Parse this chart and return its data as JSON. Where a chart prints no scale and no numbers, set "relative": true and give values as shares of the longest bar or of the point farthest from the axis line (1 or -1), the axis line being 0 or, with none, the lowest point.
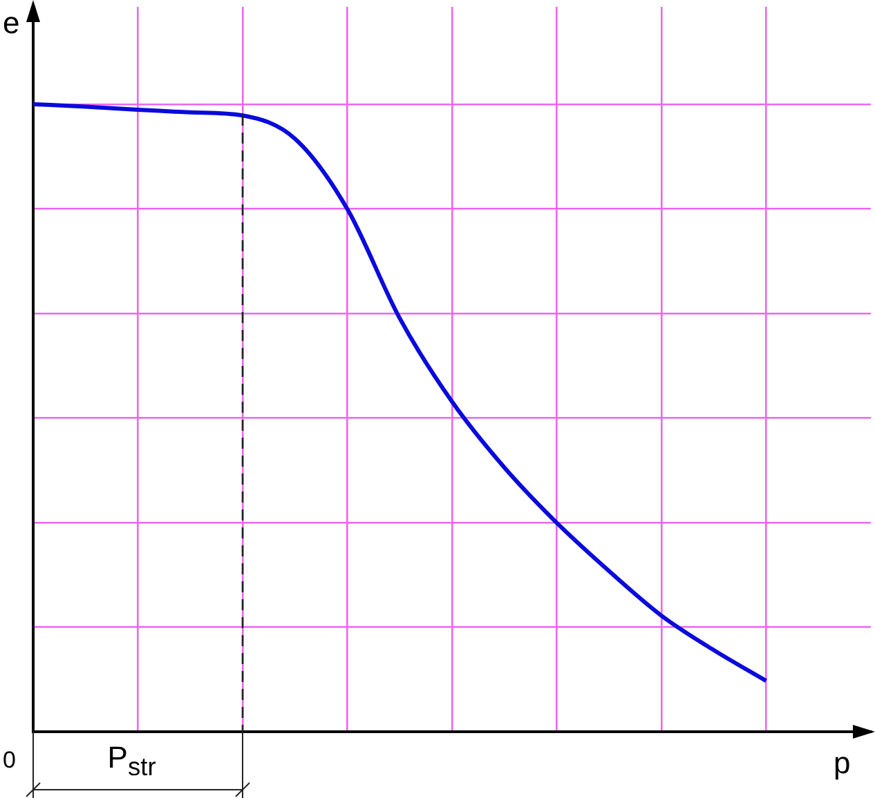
{
  "chart_data": {
    "type": "line",
    "relative": true,
    "xlabel": "p",
    "ylabel": "e",
    "annotations": [
      "0",
      "P$_{str}$"
    ],
    "grid": true,
    "legend": false,
    "marker": "none",
    "line_style": "solid",
    "categories": [
      null,
      null,
      null,
      null,
      null,
      null,
      null,
      null,
      null,
      null,
      null,
      null,
      null,
      null,
      null,
      null,
      null
    ],
    "series": [
      {
        "color": "#0a0adc",
        "values": [
          1,
          0.996,
          0.991,
          0.987,
          0.982,
          0.945,
          0.833,
          0.659,
          0.526,
          0.421,
          0.333,
          0.256,
          0.185,
          0.13,
          0.081,
          null,
          null
        ]
      }
    ]
  }
}
